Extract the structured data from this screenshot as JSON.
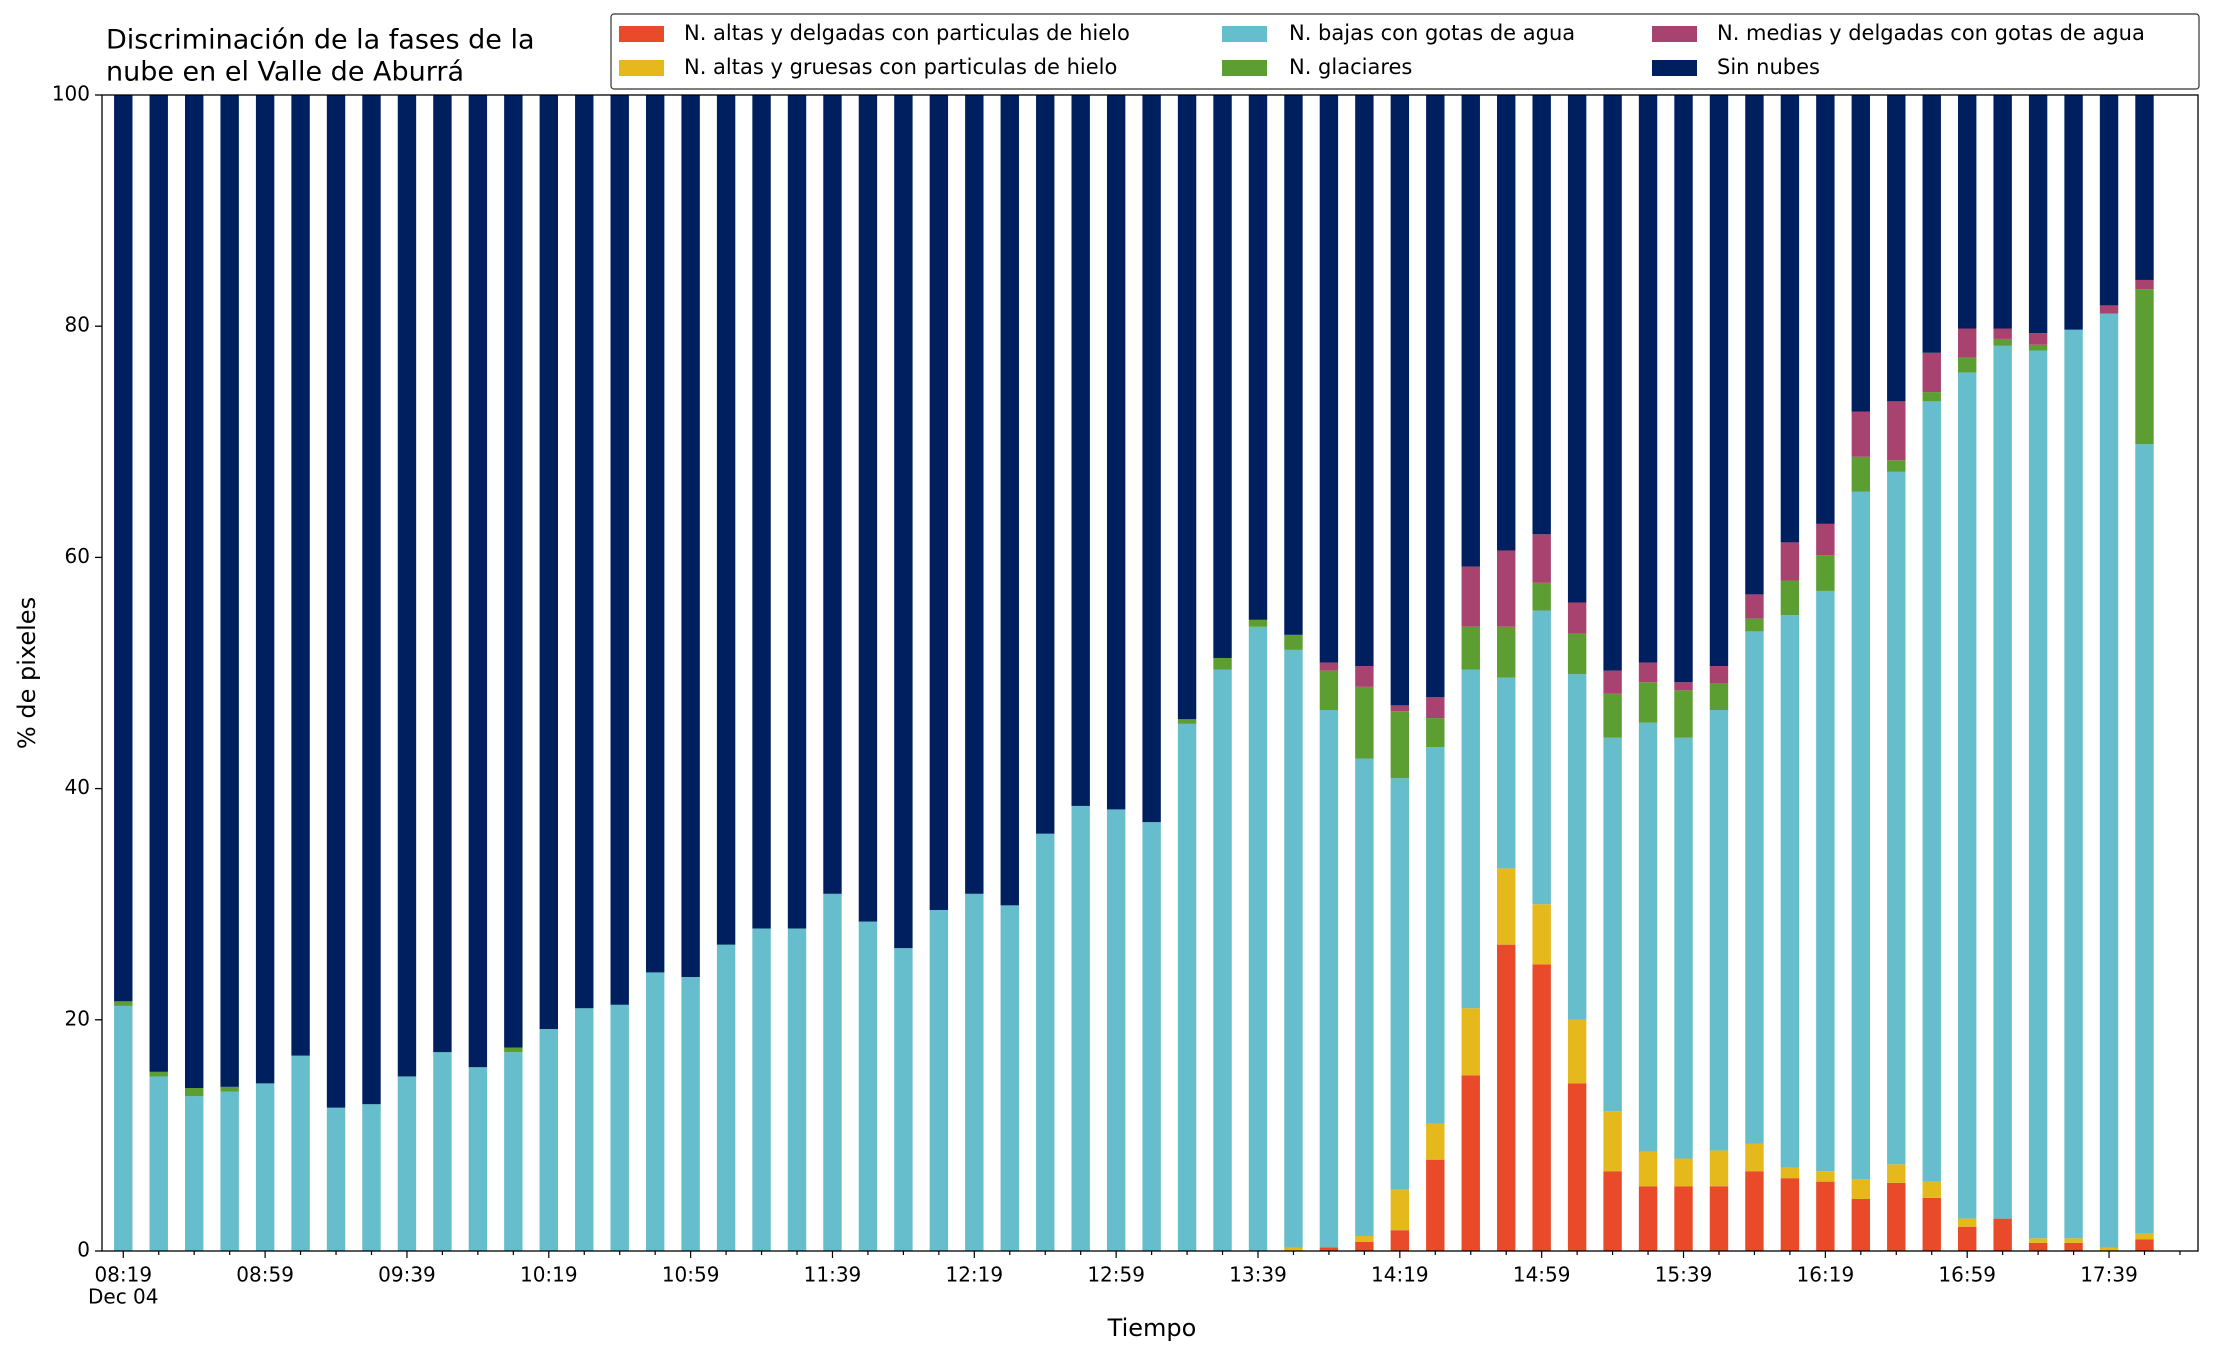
{
  "chart_data": {
    "type": "stacked_bar",
    "title": [
      "Discriminación de la fases de la",
      "nube en el Valle de Aburrá"
    ],
    "x_label": "Tiempo",
    "y_label": "% de pixeles",
    "date_label": "Dec 04",
    "categories": [
      "08:19",
      null,
      null,
      null,
      "08:59",
      null,
      null,
      null,
      "09:39",
      null,
      null,
      null,
      "10:19",
      null,
      null,
      null,
      "10:59",
      null,
      null,
      null,
      "11:39",
      null,
      null,
      null,
      "12:19",
      null,
      null,
      null,
      "12:59",
      null,
      null,
      null,
      "13:39",
      null,
      null,
      null,
      "14:19",
      null,
      null,
      null,
      "14:59",
      null,
      null,
      null,
      "15:39",
      null,
      null,
      null,
      "16:19",
      null,
      null,
      null,
      "16:59",
      null,
      null,
      null,
      "17:39",
      null
    ],
    "ylim": [
      0,
      100
    ],
    "yticks": [
      0,
      20,
      40,
      60,
      80,
      100
    ],
    "grid": false,
    "series": [
      {
        "name": "N. altas y delgadas con particulas de hielo",
        "color": "#e94b2a",
        "values": [
          0,
          0,
          0,
          0,
          0,
          0,
          0,
          0,
          0,
          0,
          0,
          0,
          0,
          0,
          0,
          0,
          0,
          0,
          0,
          0,
          0,
          0,
          0,
          0,
          0,
          0,
          0,
          0,
          0,
          0,
          0,
          0,
          0,
          0,
          0.3,
          0.8,
          1.8,
          7.9,
          15.2,
          26.5,
          24.8,
          14.5,
          6.9,
          5.6,
          5.6,
          5.6,
          6.9,
          6.3,
          6.0,
          4.5,
          5.9,
          4.6,
          2.1,
          2.8,
          0.7,
          0.7,
          0,
          1.0
        ]
      },
      {
        "name": "N. altas y gruesas con particulas de hielo",
        "color": "#e5b81c",
        "values": [
          0,
          0,
          0,
          0,
          0,
          0,
          0,
          0,
          0,
          0,
          0,
          0,
          0,
          0,
          0,
          0,
          0,
          0,
          0,
          0,
          0,
          0,
          0,
          0,
          0,
          0,
          0,
          0,
          0,
          0,
          0,
          0,
          0,
          0.3,
          0,
          0.5,
          3.5,
          3.1,
          5.8,
          6.6,
          5.2,
          5.5,
          5.2,
          3.0,
          2.4,
          3.1,
          2.4,
          0.9,
          0.9,
          1.7,
          1.6,
          1.4,
          0.7,
          0,
          0.4,
          0.4,
          0.3,
          0.5
        ]
      },
      {
        "name": "N. bajas con gotas de agua",
        "color": "#66bdcb",
        "values": [
          21.2,
          15.1,
          13.4,
          13.8,
          14.5,
          16.9,
          12.4,
          12.7,
          15.1,
          17.2,
          15.9,
          17.2,
          19.2,
          21.0,
          21.3,
          24.1,
          23.7,
          26.5,
          27.9,
          27.9,
          30.9,
          28.5,
          26.2,
          29.5,
          30.9,
          29.9,
          36.1,
          38.5,
          38.2,
          37.1,
          45.6,
          50.3,
          54.0,
          51.7,
          46.5,
          41.3,
          35.6,
          32.6,
          29.3,
          16.5,
          25.4,
          29.9,
          32.3,
          37.1,
          36.4,
          38.1,
          44.3,
          47.8,
          50.2,
          59.5,
          59.9,
          67.5,
          73.2,
          75.5,
          76.8,
          78.6,
          80.8,
          68.3
        ]
      },
      {
        "name": "N. glaciares",
        "color": "#5c9e31",
        "values": [
          0.4,
          0.4,
          0.7,
          0.4,
          0,
          0,
          0,
          0,
          0,
          0,
          0,
          0.4,
          0,
          0,
          0,
          0,
          0,
          0,
          0,
          0,
          0,
          0,
          0,
          0,
          0,
          0,
          0,
          0,
          0,
          0,
          0.4,
          1.0,
          0.6,
          1.3,
          3.4,
          6.2,
          5.8,
          2.5,
          3.7,
          4.4,
          2.4,
          3.5,
          3.8,
          3.5,
          4.1,
          2.3,
          1.1,
          3.0,
          3.1,
          3.0,
          1.0,
          0.8,
          1.3,
          0.6,
          0.5,
          0,
          0,
          13.4
        ]
      },
      {
        "name": "N. medias y delgadas con gotas de agua",
        "color": "#a8426f",
        "values": [
          0,
          0,
          0,
          0,
          0,
          0,
          0,
          0,
          0,
          0,
          0,
          0,
          0,
          0,
          0,
          0,
          0,
          0,
          0,
          0,
          0,
          0,
          0,
          0,
          0,
          0,
          0,
          0,
          0,
          0,
          0,
          0,
          0,
          0,
          0.7,
          1.8,
          0.5,
          1.8,
          5.2,
          6.6,
          4.2,
          2.7,
          2.0,
          1.7,
          0.7,
          1.5,
          2.1,
          3.3,
          2.7,
          3.9,
          5.1,
          3.4,
          2.5,
          0.9,
          1.0,
          0,
          0.7,
          0.8
        ]
      },
      {
        "name": "Sin nubes",
        "color": "#001f5f",
        "values": [
          78.4,
          84.5,
          85.9,
          85.8,
          85.5,
          83.1,
          87.6,
          87.3,
          84.9,
          82.8,
          84.1,
          82.4,
          80.8,
          79.0,
          78.7,
          75.9,
          76.3,
          73.5,
          72.1,
          72.1,
          69.1,
          71.5,
          73.8,
          70.5,
          69.1,
          70.1,
          63.9,
          61.5,
          61.8,
          62.9,
          54.0,
          48.7,
          45.4,
          46.7,
          49.1,
          49.4,
          52.8,
          52.1,
          40.8,
          39.4,
          38.0,
          43.9,
          49.8,
          49.1,
          50.8,
          49.4,
          43.2,
          38.7,
          37.1,
          27.4,
          26.5,
          22.3,
          20.2,
          20.2,
          20.6,
          20.3,
          18.2,
          16.0
        ]
      }
    ]
  }
}
